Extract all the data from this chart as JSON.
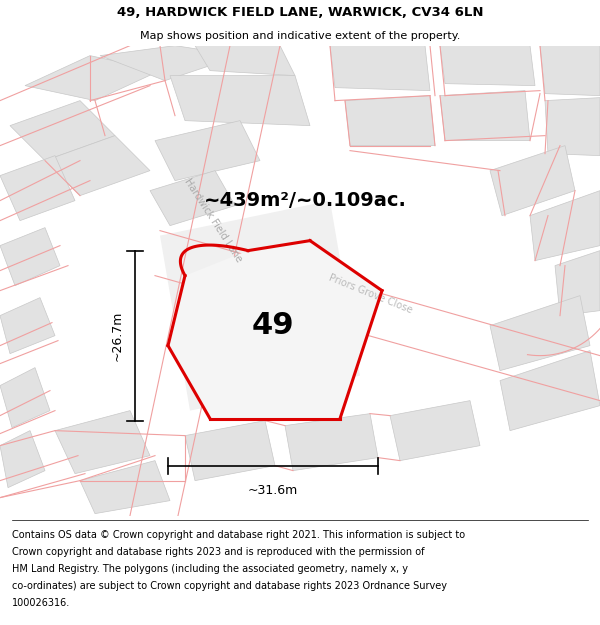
{
  "title": "49, HARDWICK FIELD LANE, WARWICK, CV34 6LN",
  "subtitle": "Map shows position and indicative extent of the property.",
  "footer_lines": [
    "Contains OS data © Crown copyright and database right 2021. This information is subject to",
    "Crown copyright and database rights 2023 and is reproduced with the permission of",
    "HM Land Registry. The polygons (including the associated geometry, namely x, y",
    "co-ordinates) are subject to Crown copyright and database rights 2023 Ordnance Survey",
    "100026316."
  ],
  "area_label": "~439m²/~0.109ac.",
  "plot_number": "49",
  "dim_width": "~31.6m",
  "dim_height": "~26.7m",
  "street1": "Hardwick Field Lane",
  "street2": "Priors Grove Close",
  "bg_color": "#f9f9f9",
  "building_fill": "#e0e0e0",
  "building_edge": "#c8c8c8",
  "road_fill": "#ffffff",
  "prop_line_color": "#f0a0a0",
  "plot_edge_color": "#dd0000",
  "plot_fill": "#f5f5f5",
  "street_label_color": "#aaaaaa",
  "dim_color": "#000000",
  "title_color": "#000000",
  "footer_sep_color": "#000000",
  "area_label_fontsize": 14,
  "plot_number_fontsize": 22,
  "street_label_fontsize": 7,
  "dim_fontsize": 9,
  "title_fontsize": 9.5,
  "subtitle_fontsize": 8,
  "footer_fontsize": 7
}
